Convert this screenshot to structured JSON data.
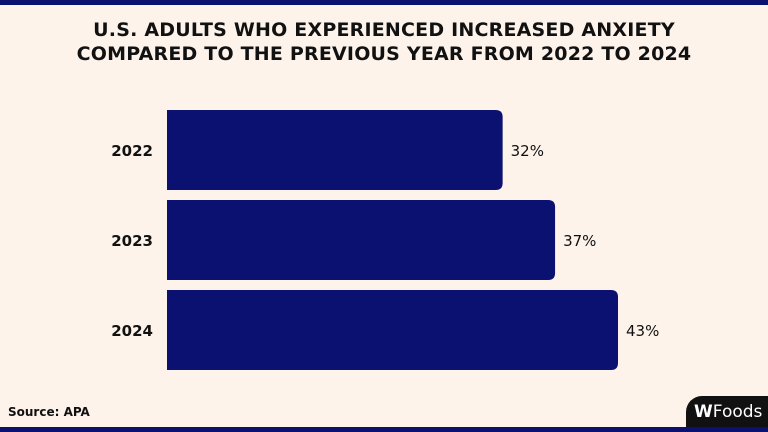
{
  "chart_data": {
    "type": "bar",
    "orientation": "horizontal",
    "title": "U.S. ADULTS WHO EXPERIENCED INCREASED ANXIETY COMPARED TO THE PREVIOUS YEAR FROM 2022 TO 2024",
    "title_lines": [
      "U.S. ADULTS WHO EXPERIENCED INCREASED ANXIETY",
      "COMPARED TO THE PREVIOUS YEAR FROM 2022 TO 2024"
    ],
    "categories": [
      "2022",
      "2023",
      "2024"
    ],
    "values": [
      32,
      37,
      43
    ],
    "data_labels": [
      "32%",
      "37%",
      "43%"
    ],
    "xlabel": "",
    "ylabel": "",
    "grid": false,
    "bar_color": "#0b1170"
  },
  "source": "Source: APA",
  "logo_text": "WFoods",
  "colors": {
    "background": "#fdf3eb",
    "accent": "#0b1170"
  }
}
